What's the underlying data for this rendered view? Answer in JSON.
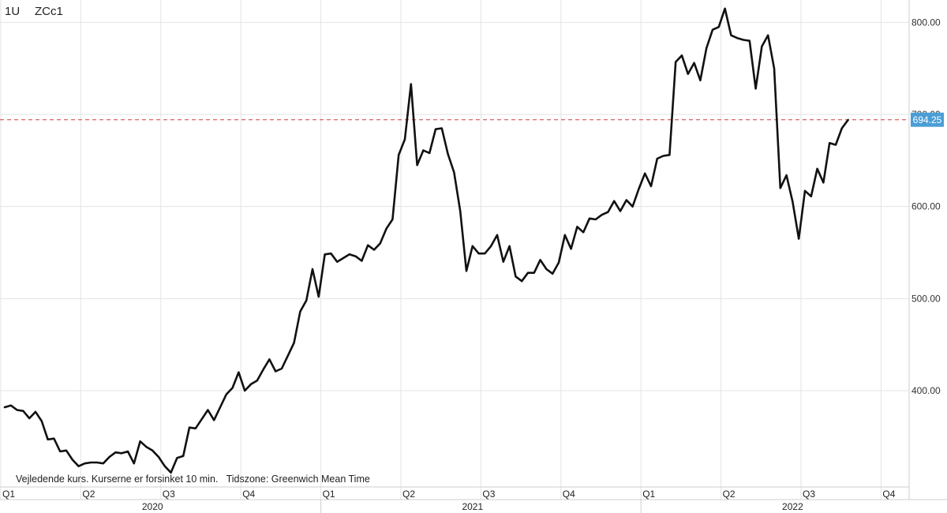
{
  "header": {
    "interval": "1U",
    "symbol": "ZCc1"
  },
  "footer_note": "Vejledende kurs. Kurserne er forsinket 10 min.   Tidszone: Greenwich Mean Time",
  "chart_data": {
    "type": "line",
    "series": [
      {
        "color": "#111111",
        "values": [
          382,
          384,
          379,
          378,
          370,
          377,
          367,
          347,
          348,
          334,
          335,
          325,
          318,
          321,
          322,
          322,
          321,
          328,
          333,
          332,
          334,
          321,
          345,
          339,
          335,
          328,
          318,
          311,
          327,
          329,
          360,
          359,
          369,
          379,
          368,
          382,
          396,
          403,
          420,
          400,
          407,
          411,
          423,
          434,
          421,
          424,
          438,
          452,
          486,
          498,
          532,
          502,
          548,
          549,
          540,
          544,
          548,
          546,
          541,
          558,
          553,
          560,
          576,
          586,
          656,
          673,
          733,
          645,
          661,
          658,
          684,
          685,
          657,
          637,
          595,
          530,
          557,
          549,
          549,
          557,
          569,
          540,
          557,
          524,
          519,
          528,
          528,
          542,
          532,
          527,
          539,
          569,
          554,
          578,
          572,
          587,
          586,
          591,
          594,
          606,
          595,
          607,
          600,
          619,
          636,
          622,
          652,
          655,
          656,
          757,
          764,
          744,
          756,
          737,
          772,
          792,
          795,
          815,
          786,
          783,
          781,
          780,
          728,
          774,
          786,
          750,
          620,
          634,
          605,
          565,
          617,
          611,
          641,
          626,
          669,
          667,
          685,
          694
        ]
      }
    ],
    "x_labels": [
      {
        "label": "Q1",
        "i": 0
      },
      {
        "label": "Q2",
        "i": 13
      },
      {
        "label": "Q3",
        "i": 26
      },
      {
        "label": "Q4",
        "i": 39
      },
      {
        "label": "Q1",
        "i": 52
      },
      {
        "label": "Q2",
        "i": 65
      },
      {
        "label": "Q3",
        "i": 78
      },
      {
        "label": "Q4",
        "i": 91
      },
      {
        "label": "Q1",
        "i": 104
      },
      {
        "label": "Q2",
        "i": 117
      },
      {
        "label": "Q3",
        "i": 130
      },
      {
        "label": "Q4",
        "i": 143
      }
    ],
    "years": [
      {
        "label": "2020",
        "i": 24
      },
      {
        "label": "2021",
        "i": 76
      },
      {
        "label": "2022",
        "i": 128
      }
    ],
    "y_ticks": [
      {
        "value": 400,
        "label": "400.00"
      },
      {
        "value": 500,
        "label": "500.00"
      },
      {
        "value": 600,
        "label": "600.00"
      },
      {
        "value": 700,
        "label": "700.00"
      },
      {
        "value": 800,
        "label": "800.00"
      }
    ],
    "ylim": [
      300,
      830
    ],
    "last_price": {
      "value": 694.25,
      "label": "694.25",
      "color": "#4a9ed6"
    },
    "reference_line": {
      "value": 694.25,
      "color": "#d23b3b",
      "style": "dashed"
    },
    "grid": true
  }
}
